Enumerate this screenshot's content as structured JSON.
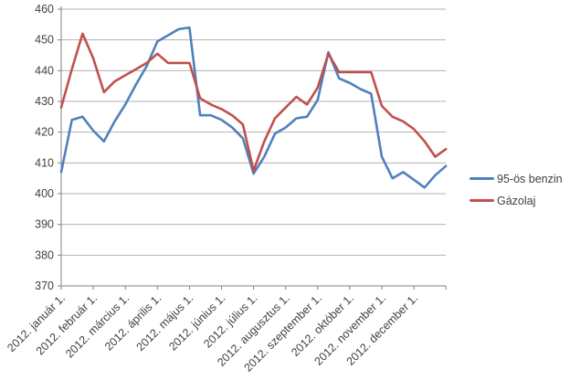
{
  "chart_data": {
    "type": "line",
    "title": "",
    "xlabel": "",
    "ylabel": "",
    "ylim": [
      370,
      460
    ],
    "y_ticks": [
      460,
      450,
      440,
      430,
      420,
      410,
      400,
      390,
      380,
      370
    ],
    "x_tick_labels": [
      "2012. január 1.",
      "2012. február 1.",
      "2012. március 1.",
      "2012. április 1.",
      "2012. május 1.",
      "2012. június 1.",
      "2012. július 1.",
      "2012. augusztus 1.",
      "2012. szeptember 1.",
      "2012. október 1.",
      "2012. november 1.",
      "2012. december 1."
    ],
    "points_per_month": 3,
    "grid": true,
    "legend_position": "right",
    "series": [
      {
        "name": "95-ös benzin",
        "color": "#4F81BD",
        "values": [
          407,
          424,
          425,
          420.5,
          417,
          423.5,
          429,
          435.5,
          441.5,
          449.5,
          451.5,
          453.5,
          454,
          425.5,
          425.5,
          424,
          421.5,
          418,
          406.5,
          412,
          419.5,
          421.5,
          424.5,
          425,
          430.5,
          446,
          437.5,
          436,
          434,
          432.5,
          412,
          405,
          407,
          404.5,
          402,
          406,
          409
        ]
      },
      {
        "name": "Gázolaj",
        "color": "#C0504D",
        "values": [
          428,
          440.5,
          452,
          444,
          433,
          436.5,
          438.5,
          440.5,
          442.5,
          445.5,
          442.5,
          442.5,
          442.5,
          431,
          429,
          427.5,
          425.5,
          422.5,
          407.5,
          417,
          424.5,
          428,
          431.5,
          429,
          434.5,
          445.5,
          439.5,
          439.5,
          439.5,
          439.5,
          428.5,
          425,
          423.5,
          421,
          417,
          412,
          414.5
        ]
      }
    ],
    "colors": {
      "gridline": "#b3b3b3",
      "axis": "#808080",
      "tick_text": "#3f3f3f"
    }
  }
}
